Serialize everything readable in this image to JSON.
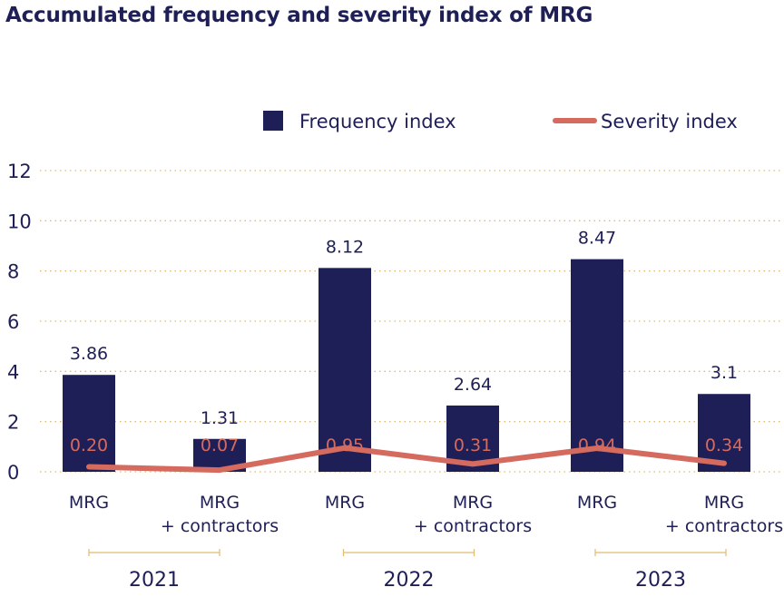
{
  "colors": {
    "bar": "#1f1f57",
    "line": "#d56a5e",
    "grid": "#e2bb70",
    "text": "#1f1f57"
  },
  "chart_data": {
    "type": "bar",
    "title": "Accumulated frequency and severity index of MRG",
    "categories": [
      [
        "MRG"
      ],
      [
        "MRG",
        "+ contractors"
      ],
      [
        "MRG"
      ],
      [
        "MRG",
        "+ contractors"
      ],
      [
        "MRG"
      ],
      [
        "MRG",
        "+ contractors"
      ]
    ],
    "groups": [
      {
        "label": "2021",
        "categories": [
          0,
          1
        ]
      },
      {
        "label": "2022",
        "categories": [
          2,
          3
        ]
      },
      {
        "label": "2023",
        "categories": [
          4,
          5
        ]
      }
    ],
    "series": [
      {
        "name": "Frequency index",
        "kind": "bar",
        "values": [
          3.86,
          1.31,
          8.12,
          2.64,
          8.47,
          3.1
        ],
        "labels": [
          "3.86",
          "1.31",
          "8.12",
          "2.64",
          "8.47",
          "3.1"
        ]
      },
      {
        "name": "Severity index",
        "kind": "line",
        "values": [
          0.2,
          0.07,
          0.95,
          0.31,
          0.94,
          0.34
        ],
        "labels": [
          "0.20",
          "0.07",
          "0.95",
          "0.31",
          "0.94",
          "0.34"
        ]
      }
    ],
    "yticks": [
      0,
      2,
      4,
      6,
      8,
      10,
      12
    ],
    "ylim": [
      0,
      12
    ],
    "grid": true,
    "legend_position": "top-right"
  }
}
